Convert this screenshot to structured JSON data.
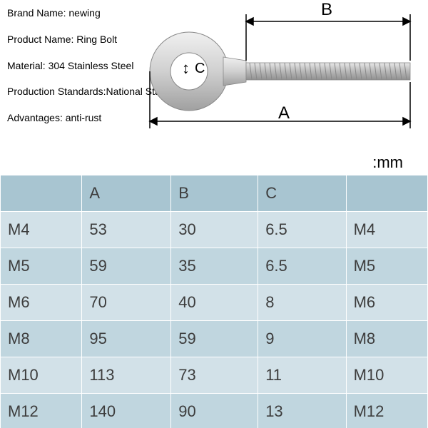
{
  "specs": {
    "label_brand": "Brand Name:",
    "brand": "newing",
    "label_product": "Product Name:",
    "product": "Ring Bolt",
    "label_material": "Material:",
    "material": "304 Stainless Steel",
    "label_standard": "Production Standards:",
    "standard": "National Standard",
    "label_advantages": "Advantages:",
    "advantages": "anti-rust"
  },
  "dimensions": {
    "a": "A",
    "b": "B",
    "c": "C",
    "arrow_c": "↕"
  },
  "unit_label": ":mm",
  "bolt_svg": {
    "stroke": "#8a8a8a",
    "fill_light": "#e0e0e0",
    "fill_mid": "#c5c5c5",
    "fill_dark": "#a8a8a8",
    "dim_stroke": "#000000"
  },
  "table": {
    "header_bg": "#a8c5d1",
    "row_even_bg": "#c0d6df",
    "row_odd_bg": "#d2e1e8",
    "text_color": "#3d3d3d",
    "columns": [
      "",
      "A",
      "B",
      "C",
      ""
    ],
    "rows": [
      [
        "M4",
        "53",
        "30",
        "6.5",
        "M4"
      ],
      [
        "M5",
        "59",
        "35",
        "6.5",
        "M5"
      ],
      [
        "M6",
        "70",
        "40",
        "8",
        "M6"
      ],
      [
        "M8",
        "95",
        "59",
        "9",
        "M8"
      ],
      [
        "M10",
        "113",
        "73",
        "11",
        "M10"
      ],
      [
        "M12",
        "140",
        "90",
        "13",
        "M12"
      ]
    ]
  }
}
